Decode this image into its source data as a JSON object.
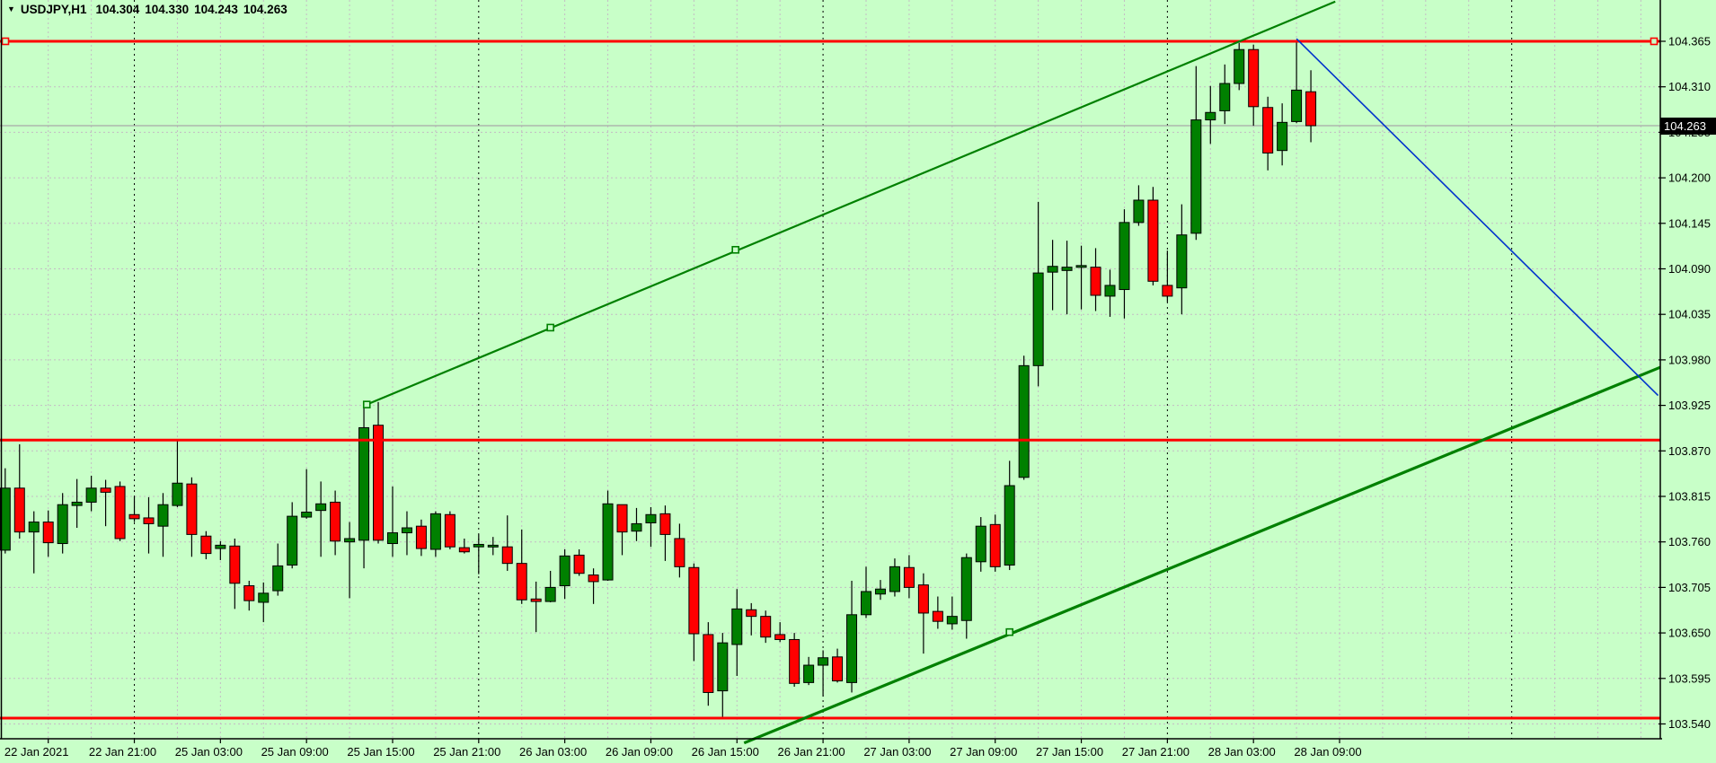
{
  "title": {
    "dropdown_icon": "▼",
    "symbol_period": "USDJPY,H1",
    "open": "104.304",
    "high": "104.330",
    "low": "104.243",
    "close": "104.263"
  },
  "colors": {
    "background": "#C8FFC8",
    "grid": "#C4BCC4",
    "separator": "#000000",
    "bull_fill": "#008000",
    "bear_fill": "#FF0000",
    "candle_outline": "#000000",
    "wick": "#000000",
    "hline_red": "#FF0000",
    "trend_green": "#008000",
    "trend_blue": "#0033CC",
    "price_line": "#A9A9A9",
    "price_box_bg": "#000000",
    "price_box_text": "#FFFFFF",
    "axis_text": "#000000",
    "border": "#000000"
  },
  "y_axis": {
    "tick_labels": [
      "104.365",
      "104.310",
      "104.255",
      "104.200",
      "104.145",
      "104.090",
      "104.035",
      "103.980",
      "103.925",
      "103.870",
      "103.815",
      "103.760",
      "103.705",
      "103.650",
      "103.595",
      "103.540"
    ],
    "current_price_label": "104.263"
  },
  "x_axis": {
    "labels": [
      {
        "text": "22 Jan 2021",
        "index": 3
      },
      {
        "text": "22 Jan 21:00",
        "index": 9
      },
      {
        "text": "25 Jan 03:00",
        "index": 15
      },
      {
        "text": "25 Jan 09:00",
        "index": 21
      },
      {
        "text": "25 Jan 15:00",
        "index": 27
      },
      {
        "text": "25 Jan 21:00",
        "index": 33
      },
      {
        "text": "26 Jan 03:00",
        "index": 39
      },
      {
        "text": "26 Jan 09:00",
        "index": 45
      },
      {
        "text": "26 Jan 15:00",
        "index": 51
      },
      {
        "text": "26 Jan 21:00",
        "index": 57
      },
      {
        "text": "27 Jan 03:00",
        "index": 63
      },
      {
        "text": "27 Jan 09:00",
        "index": 69
      },
      {
        "text": "27 Jan 15:00",
        "index": 75
      },
      {
        "text": "27 Jan 21:00",
        "index": 81
      },
      {
        "text": "28 Jan 03:00",
        "index": 87
      },
      {
        "text": "28 Jan 09:00",
        "index": 93
      }
    ]
  },
  "chart_data": {
    "type": "candlestick",
    "title": "USDJPY,H1",
    "symbol": "USDJPY",
    "period": "H1",
    "grid": "on",
    "legend_position": "none",
    "ylim": [
      103.522,
      104.413
    ],
    "y_ticks": [
      104.365,
      104.31,
      104.255,
      104.2,
      104.145,
      104.09,
      104.035,
      103.98,
      103.925,
      103.87,
      103.815,
      103.76,
      103.705,
      103.65,
      103.595,
      103.54
    ],
    "current_price": 104.263,
    "current_bar_ohlc": [
      104.304,
      104.33,
      104.243,
      104.263
    ],
    "day_separator_indices": [
      9,
      33,
      57,
      81,
      105
    ],
    "candles": [
      [
        103.75,
        103.849,
        103.746,
        103.825
      ],
      [
        103.825,
        103.878,
        103.764,
        103.772
      ],
      [
        103.772,
        103.797,
        103.722,
        103.784
      ],
      [
        103.784,
        103.798,
        103.742,
        103.759
      ],
      [
        103.758,
        103.819,
        103.746,
        103.805
      ],
      [
        103.804,
        103.836,
        103.777,
        103.808
      ],
      [
        103.808,
        103.84,
        103.797,
        103.825
      ],
      [
        103.825,
        103.835,
        103.779,
        103.82
      ],
      [
        103.827,
        103.833,
        103.761,
        103.764
      ],
      [
        103.793,
        103.815,
        103.784,
        103.788
      ],
      [
        103.789,
        103.814,
        103.746,
        103.782
      ],
      [
        103.779,
        103.819,
        103.742,
        103.805
      ],
      [
        103.804,
        103.883,
        103.802,
        103.831
      ],
      [
        103.83,
        103.838,
        103.742,
        103.769
      ],
      [
        103.767,
        103.773,
        103.739,
        103.746
      ],
      [
        103.752,
        103.761,
        103.738,
        103.756
      ],
      [
        103.755,
        103.764,
        103.679,
        103.71
      ],
      [
        103.707,
        103.713,
        103.677,
        103.689
      ],
      [
        103.687,
        103.711,
        103.663,
        103.698
      ],
      [
        103.701,
        103.758,
        103.695,
        103.731
      ],
      [
        103.732,
        103.808,
        103.728,
        103.791
      ],
      [
        103.79,
        103.848,
        103.788,
        103.796
      ],
      [
        103.798,
        103.833,
        103.742,
        103.806
      ],
      [
        103.808,
        103.822,
        103.744,
        103.761
      ],
      [
        103.76,
        103.784,
        103.692,
        103.764
      ],
      [
        103.762,
        103.922,
        103.728,
        103.898
      ],
      [
        103.901,
        103.929,
        103.758,
        103.762
      ],
      [
        103.758,
        103.827,
        103.742,
        103.771
      ],
      [
        103.771,
        103.797,
        103.744,
        103.777
      ],
      [
        103.779,
        103.787,
        103.743,
        103.752
      ],
      [
        103.751,
        103.797,
        103.742,
        103.794
      ],
      [
        103.793,
        103.797,
        103.751,
        103.754
      ],
      [
        103.753,
        103.764,
        103.746,
        103.748
      ],
      [
        103.754,
        103.769,
        103.721,
        103.757
      ],
      [
        103.755,
        103.766,
        103.744,
        103.756
      ],
      [
        103.754,
        103.792,
        103.725,
        103.734
      ],
      [
        103.734,
        103.775,
        103.685,
        103.69
      ],
      [
        103.691,
        103.712,
        103.651,
        103.688
      ],
      [
        103.688,
        103.725,
        103.687,
        103.705
      ],
      [
        103.707,
        103.751,
        103.691,
        103.743
      ],
      [
        103.744,
        103.751,
        103.719,
        103.722
      ],
      [
        103.72,
        103.728,
        103.685,
        103.712
      ],
      [
        103.714,
        103.822,
        103.713,
        103.806
      ],
      [
        103.805,
        103.805,
        103.744,
        103.772
      ],
      [
        103.773,
        103.801,
        103.761,
        103.782
      ],
      [
        103.783,
        103.802,
        103.754,
        103.793
      ],
      [
        103.794,
        103.804,
        103.737,
        103.769
      ],
      [
        103.764,
        103.782,
        103.717,
        103.73
      ],
      [
        103.729,
        103.734,
        103.616,
        103.649
      ],
      [
        103.648,
        103.663,
        103.562,
        103.578
      ],
      [
        103.58,
        103.65,
        103.546,
        103.638
      ],
      [
        103.636,
        103.703,
        103.598,
        103.679
      ],
      [
        103.678,
        103.686,
        103.647,
        103.67
      ],
      [
        103.67,
        103.677,
        103.638,
        103.645
      ],
      [
        103.648,
        103.663,
        103.639,
        103.642
      ],
      [
        103.642,
        103.65,
        103.585,
        103.589
      ],
      [
        103.59,
        103.621,
        103.587,
        103.611
      ],
      [
        103.611,
        103.629,
        103.573,
        103.62
      ],
      [
        103.621,
        103.631,
        103.59,
        103.592
      ],
      [
        103.59,
        103.713,
        103.578,
        103.672
      ],
      [
        103.672,
        103.73,
        103.668,
        103.7
      ],
      [
        103.697,
        103.714,
        103.69,
        103.703
      ],
      [
        103.7,
        103.74,
        103.694,
        103.73
      ],
      [
        103.729,
        103.744,
        103.692,
        103.705
      ],
      [
        103.708,
        103.722,
        103.625,
        103.674
      ],
      [
        103.676,
        103.694,
        103.655,
        103.664
      ],
      [
        103.661,
        103.694,
        103.654,
        103.67
      ],
      [
        103.665,
        103.746,
        103.643,
        103.741
      ],
      [
        103.736,
        103.79,
        103.724,
        103.779
      ],
      [
        103.781,
        103.793,
        103.724,
        103.73
      ],
      [
        103.732,
        103.858,
        103.726,
        103.828
      ],
      [
        103.838,
        103.985,
        103.835,
        103.973
      ],
      [
        103.973,
        104.171,
        103.948,
        104.085
      ],
      [
        104.086,
        104.125,
        104.04,
        104.093
      ],
      [
        104.088,
        104.124,
        104.035,
        104.092
      ],
      [
        104.092,
        104.118,
        104.041,
        104.094
      ],
      [
        104.092,
        104.115,
        104.039,
        104.058
      ],
      [
        104.057,
        104.089,
        104.032,
        104.07
      ],
      [
        104.065,
        104.162,
        104.03,
        104.146
      ],
      [
        104.146,
        104.191,
        104.142,
        104.173
      ],
      [
        104.173,
        104.189,
        104.07,
        104.075
      ],
      [
        104.07,
        104.112,
        104.05,
        104.057
      ],
      [
        104.067,
        104.168,
        104.035,
        104.131
      ],
      [
        104.133,
        104.335,
        104.125,
        104.27
      ],
      [
        104.27,
        104.311,
        104.241,
        104.279
      ],
      [
        104.281,
        104.337,
        104.265,
        104.314
      ],
      [
        104.314,
        104.363,
        104.306,
        104.355
      ],
      [
        104.355,
        104.361,
        104.263,
        104.286
      ],
      [
        104.285,
        104.298,
        104.209,
        104.23
      ],
      [
        104.233,
        104.29,
        104.215,
        104.267
      ],
      [
        104.268,
        104.366,
        104.266,
        104.306
      ],
      [
        104.304,
        104.33,
        104.243,
        104.263
      ]
    ],
    "horizontal_lines": [
      {
        "name": "resistance-line",
        "price": 104.365,
        "width": 3,
        "end_markers": true
      },
      {
        "name": "mid-support-line",
        "price": 103.883,
        "width": 3,
        "end_markers": false
      },
      {
        "name": "bottom-support-line",
        "price": 103.547,
        "width": 3,
        "end_markers": false
      }
    ],
    "trend_lines": [
      {
        "name": "channel-upper-trendline",
        "color_key": "trend_green",
        "width": 2.2,
        "p1": {
          "index": 25.2,
          "price": 103.926
        },
        "p2": {
          "index": 92.7,
          "price": 104.413
        },
        "markers": [
          {
            "index": 25.2,
            "price": 103.926
          },
          {
            "index": 38.0,
            "price": 104.019
          },
          {
            "index": 50.9,
            "price": 104.113
          }
        ]
      },
      {
        "name": "channel-lower-trendline",
        "color_key": "trend_green",
        "width": 3.2,
        "p1": {
          "index": 51.5,
          "price": 103.517
        },
        "p2": {
          "index": 115.35,
          "price": 103.971
        },
        "markers": [
          {
            "index": 70.0,
            "price": 103.651
          }
        ]
      },
      {
        "name": "forecast-line",
        "color_key": "trend_blue",
        "width": 1.6,
        "p1": {
          "index": 90.0,
          "price": 104.368
        },
        "p2": {
          "index": 115.2,
          "price": 103.937
        },
        "markers": []
      }
    ]
  }
}
